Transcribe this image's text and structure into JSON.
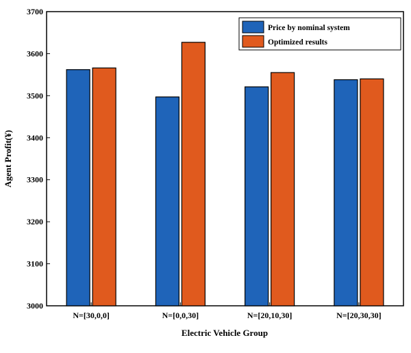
{
  "chart_data": {
    "type": "bar",
    "title": "",
    "xlabel": "Electric Vehicle Group",
    "ylabel": "Agent Profit(¥)",
    "categories": [
      "N=[30,0,0]",
      "N=[0,0,30]",
      "N=[20,10,30]",
      "N=[20,30,30]"
    ],
    "series": [
      {
        "name": "Price by nominal system",
        "color": "#1f64b9",
        "values": [
          3562,
          3497,
          3521,
          3538
        ]
      },
      {
        "name": "Optimized results",
        "color": "#e05a1e",
        "values": [
          3566,
          3627,
          3555,
          3540
        ]
      }
    ],
    "ylim": [
      3000,
      3700
    ],
    "yticks": [
      3000,
      3100,
      3200,
      3300,
      3400,
      3500,
      3600,
      3700
    ],
    "grid": false,
    "legend_position": "top-right"
  }
}
